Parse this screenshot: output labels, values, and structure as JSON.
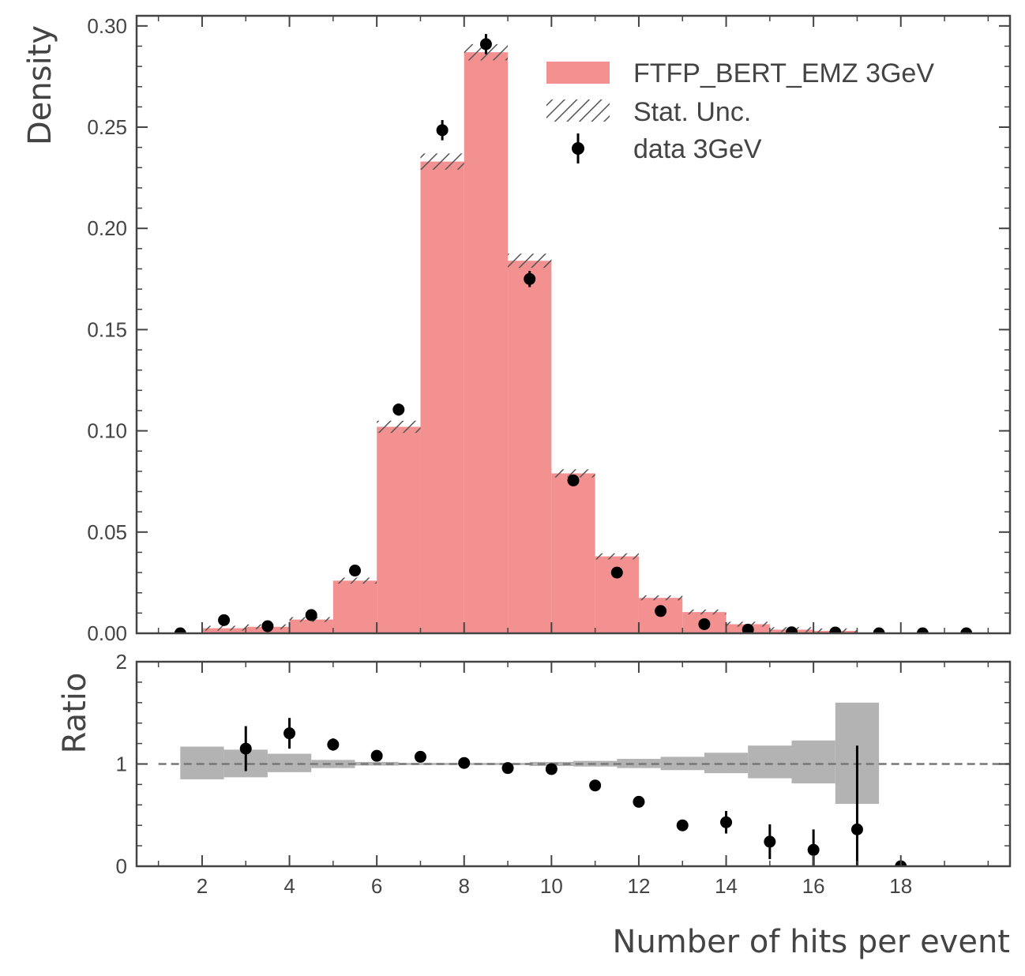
{
  "chart_data": [
    {
      "type": "bar",
      "panel": "main",
      "ylabel": "Density",
      "xlabel": "",
      "xlim": [
        0.5,
        20.5
      ],
      "ylim": [
        0,
        0.305
      ],
      "yticks": [
        0.0,
        0.05,
        0.1,
        0.15,
        0.2,
        0.25,
        0.3
      ],
      "ytick_labels": [
        "0.00",
        "0.05",
        "0.10",
        "0.15",
        "0.20",
        "0.25",
        "0.30"
      ],
      "bin_edges": [
        1.0,
        2.0,
        3.0,
        4.0,
        5.0,
        6.0,
        7.0,
        8.0,
        9.0,
        10.0,
        11.0,
        12.0,
        13.0,
        14.0,
        15.0,
        16.0,
        17.0,
        18.0,
        19.0,
        20.0
      ],
      "series": [
        {
          "name": "FTFP_BERT_EMZ 3GeV",
          "kind": "histogram",
          "color": "#f28b8b",
          "values": [
            0.0,
            0.0025,
            0.0032,
            0.0068,
            0.026,
            0.102,
            0.233,
            0.287,
            0.184,
            0.079,
            0.038,
            0.0175,
            0.0105,
            0.0045,
            0.0018,
            0.0012,
            0.0,
            0.0,
            0.0
          ],
          "stat_unc": [
            0.0,
            0.0005,
            0.0005,
            0.0008,
            0.0015,
            0.003,
            0.004,
            0.004,
            0.0035,
            0.002,
            0.0015,
            0.001,
            0.0008,
            0.0005,
            0.0003,
            0.0002,
            0.0,
            0.0,
            0.0
          ]
        },
        {
          "name": "Stat. Unc.",
          "kind": "hatch",
          "color": "#555555"
        },
        {
          "name": "data 3GeV",
          "kind": "points",
          "color": "#000000",
          "x": [
            1.5,
            2.5,
            3.5,
            4.5,
            5.5,
            6.5,
            7.5,
            8.5,
            9.5,
            10.5,
            11.5,
            12.5,
            13.5,
            14.5,
            15.5,
            16.5,
            17.5,
            18.5,
            19.5
          ],
          "values": [
            0.0,
            0.0065,
            0.0035,
            0.009,
            0.031,
            0.1105,
            0.2485,
            0.291,
            0.175,
            0.0755,
            0.03,
            0.011,
            0.0045,
            0.0018,
            0.0005,
            0.0004,
            0.0,
            0.0,
            0.0
          ],
          "errors": [
            0.0,
            0.0008,
            0.0006,
            0.001,
            0.0018,
            0.003,
            0.005,
            0.005,
            0.004,
            0.0025,
            0.0015,
            0.001,
            0.0008,
            0.0005,
            0.0002,
            0.0002,
            0.0,
            0.0,
            0.0
          ]
        }
      ],
      "legend": "top-right"
    },
    {
      "type": "scatter",
      "panel": "ratio",
      "ylabel": "Ratio",
      "xlabel": "Number of hits per event",
      "xlim": [
        0.5,
        20.5
      ],
      "ylim": [
        0,
        2
      ],
      "yticks": [
        0,
        1,
        2
      ],
      "ytick_labels": [
        "0",
        "1",
        "2"
      ],
      "xticks": [
        2,
        4,
        6,
        8,
        10,
        12,
        14,
        16,
        18
      ],
      "xtick_labels": [
        "2",
        "4",
        "6",
        "8",
        "10",
        "12",
        "14",
        "16",
        "18"
      ],
      "reference_line": 1,
      "band": {
        "bin_edges": [
          1.5,
          2.5,
          3.5,
          4.5,
          5.5,
          6.5,
          7.5,
          8.5,
          9.5,
          10.5,
          11.5,
          12.5,
          13.5,
          14.5,
          15.5,
          16.5,
          17.5
        ],
        "low": [
          0.85,
          0.87,
          0.92,
          0.96,
          0.985,
          0.99,
          0.99,
          0.99,
          0.98,
          0.975,
          0.96,
          0.94,
          0.91,
          0.86,
          0.81,
          0.61
        ],
        "high": [
          1.17,
          1.14,
          1.1,
          1.04,
          1.02,
          1.01,
          1.01,
          1.01,
          1.02,
          1.03,
          1.05,
          1.07,
          1.11,
          1.18,
          1.23,
          1.6
        ],
        "color": "#b3b3b3"
      },
      "points": {
        "x": [
          3,
          4,
          5,
          6,
          7,
          8,
          9,
          10,
          11,
          12,
          13,
          14,
          15,
          16,
          17,
          18
        ],
        "values": [
          1.15,
          1.3,
          1.19,
          1.08,
          1.07,
          1.01,
          0.96,
          0.95,
          0.79,
          0.63,
          0.4,
          0.43,
          0.24,
          0.16,
          0.36,
          0.0
        ],
        "errors": [
          0.22,
          0.15,
          0.06,
          0.03,
          0.02,
          0.015,
          0.02,
          0.03,
          0.03,
          0.03,
          0.04,
          0.11,
          0.17,
          0.2,
          0.82,
          0.0
        ],
        "color": "#000000"
      }
    }
  ]
}
